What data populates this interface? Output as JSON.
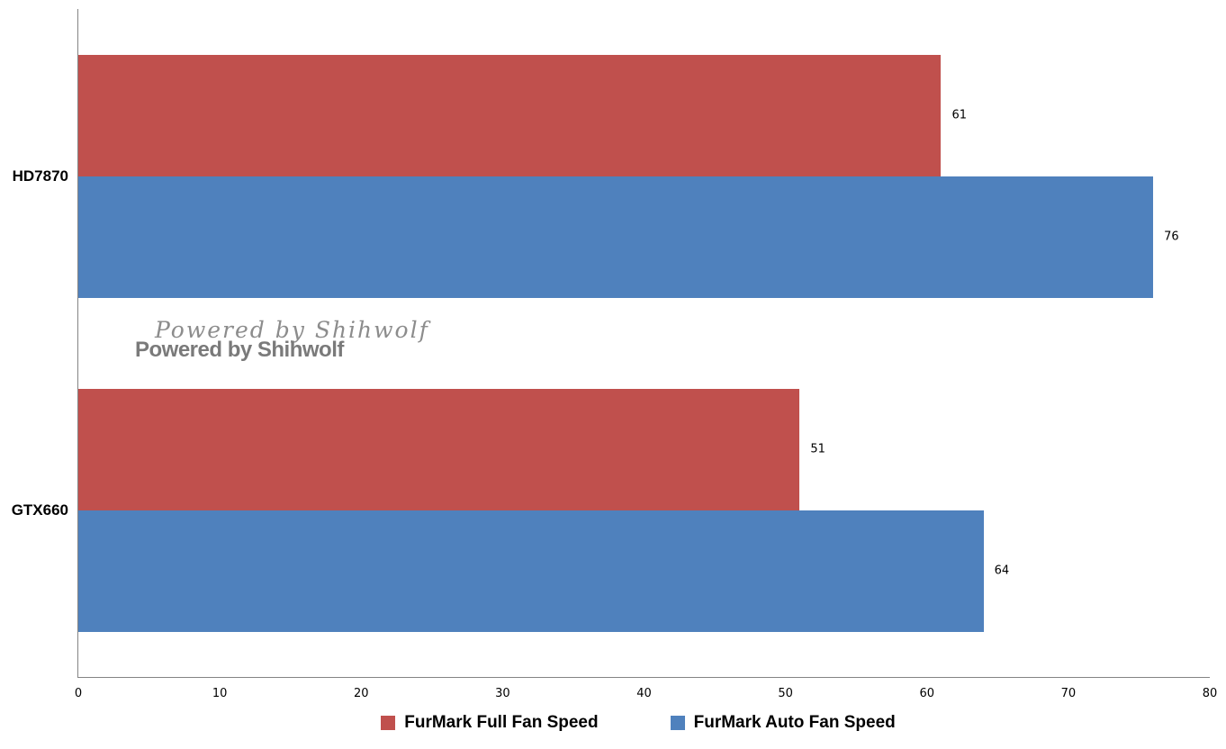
{
  "watermark": {
    "script_line": "Powered by Shihwolf",
    "bold_line": "Powered by Shihwolf"
  },
  "chart_data": {
    "type": "bar",
    "orientation": "horizontal",
    "title": "",
    "xlabel": "",
    "ylabel": "",
    "categories": [
      "HD7870",
      "GTX660"
    ],
    "series": [
      {
        "name": "FurMark Full Fan Speed",
        "color": "#C0504D",
        "values": [
          61,
          51
        ]
      },
      {
        "name": "FurMark Auto Fan Speed",
        "color": "#4F81BD",
        "values": [
          76,
          64
        ]
      }
    ],
    "data_labels": [
      [
        61,
        51
      ],
      [
        76,
        64
      ]
    ],
    "xlim": [
      0,
      80
    ],
    "xticks": [
      0,
      10,
      20,
      30,
      40,
      50,
      60,
      70,
      80
    ],
    "grid": false,
    "legend_position": "bottom",
    "axis_color": "#848484",
    "background_color": "#FFFFFF",
    "label_color": "#000000"
  }
}
